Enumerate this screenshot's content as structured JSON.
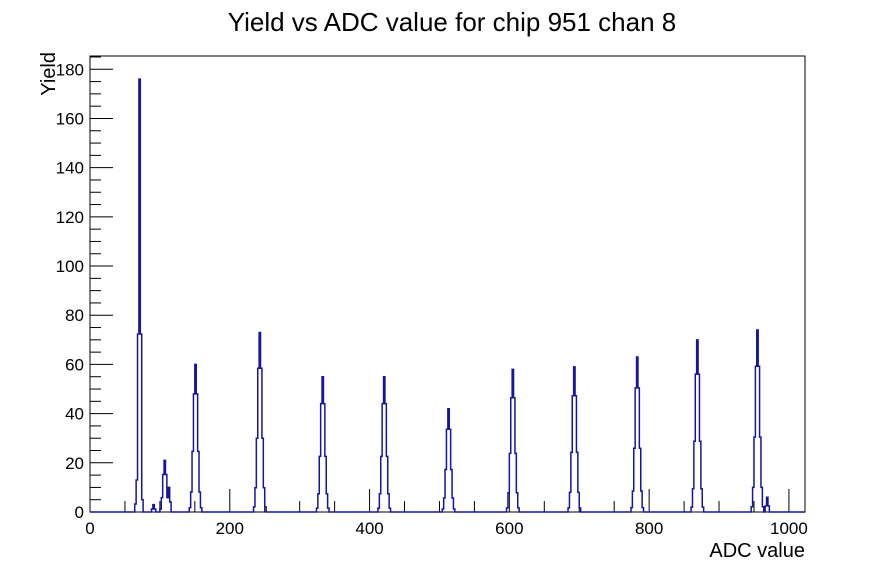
{
  "title": "Yield vs ADC value for chip 951 chan 8",
  "chart_data": {
    "type": "bar",
    "subtype": "histogram-step",
    "title": "Yield vs ADC value for chip 951 chan 8",
    "xlabel": "ADC value",
    "ylabel": "Yield",
    "xlim": [
      0,
      1023
    ],
    "ylim": [
      0,
      185.4
    ],
    "x_major_ticks": [
      0,
      200,
      400,
      600,
      800,
      1000
    ],
    "x_minor_step": 50,
    "y_major_ticks": [
      0,
      20,
      40,
      60,
      80,
      100,
      120,
      140,
      160,
      180
    ],
    "y_minor_step": 5,
    "bin_width": 2,
    "grid": false,
    "legend": "none",
    "line_color": "#15159d",
    "frame_color": "#000000",
    "background_color": "#ffffff",
    "peaks": [
      {
        "center": 67,
        "height": 13,
        "sigma": 1.2
      },
      {
        "center": 71,
        "height": 176,
        "sigma": 1.5
      },
      {
        "center": 91,
        "height": 3,
        "sigma": 1.5
      },
      {
        "center": 107,
        "height": 21,
        "sigma": 2.5
      },
      {
        "center": 113,
        "height": 10,
        "sigma": 1.5
      },
      {
        "center": 151,
        "height": 60,
        "sigma": 3
      },
      {
        "center": 243,
        "height": 73,
        "sigma": 3
      },
      {
        "center": 333,
        "height": 55,
        "sigma": 3
      },
      {
        "center": 421,
        "height": 55,
        "sigma": 3
      },
      {
        "center": 513,
        "height": 42,
        "sigma": 3
      },
      {
        "center": 605,
        "height": 58,
        "sigma": 3
      },
      {
        "center": 693,
        "height": 59,
        "sigma": 3
      },
      {
        "center": 783,
        "height": 63,
        "sigma": 3
      },
      {
        "center": 869,
        "height": 70,
        "sigma": 3
      },
      {
        "center": 955,
        "height": 74,
        "sigma": 3
      },
      {
        "center": 969,
        "height": 6,
        "sigma": 1.5
      }
    ]
  }
}
